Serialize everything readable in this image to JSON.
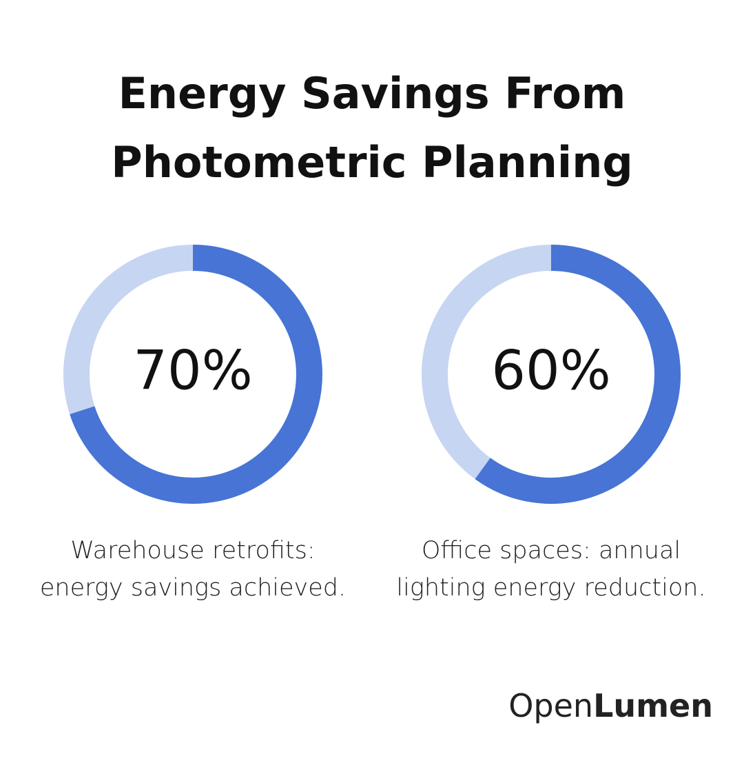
{
  "title": [
    "Energy Savings From",
    "Photometric Planning"
  ],
  "chart_data": [
    {
      "type": "donut",
      "values": [
        70
      ],
      "value_labels": [
        "70%"
      ],
      "color": "#4774d5",
      "track_color": "#c6d5f1",
      "caption": [
        "Warehouse retrofits:",
        "energy savings achieved."
      ]
    },
    {
      "type": "donut",
      "values": [
        60
      ],
      "value_labels": [
        "60%"
      ],
      "color": "#4774d5",
      "track_color": "#c6d5f1",
      "caption": [
        "Office spaces: annual",
        "lighting energy reduction."
      ]
    }
  ],
  "brand": {
    "prefix": "Open",
    "name": "Lumen"
  }
}
